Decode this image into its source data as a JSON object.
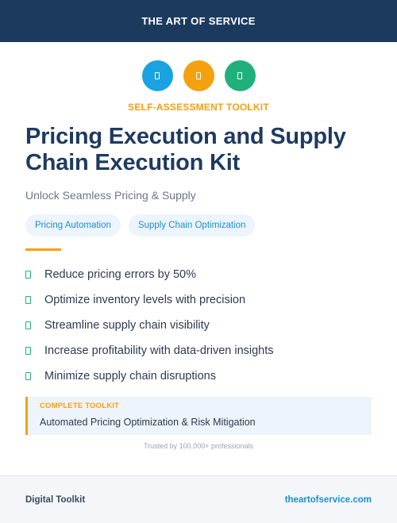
{
  "header": {
    "brand": "THE ART OF SERVICE"
  },
  "icons": [
    {
      "name": "blue-icon",
      "color": "#1aa3e0"
    },
    {
      "name": "orange-icon",
      "color": "#f5a00f"
    },
    {
      "name": "green-icon",
      "color": "#20b07c"
    }
  ],
  "eyebrow": "SELF-ASSESSMENT TOOLKIT",
  "title_line1": "Pricing Execution and Supply",
  "title_line2": "Chain Execution Kit",
  "subtitle": "Unlock Seamless Pricing & Supply",
  "tags": [
    "Pricing Automation",
    "Supply Chain Optimization"
  ],
  "features": [
    "Reduce pricing errors by 50%",
    "Optimize inventory levels with precision",
    "Streamline supply chain visibility",
    "Increase profitability with data-driven insights",
    "Minimize supply chain disruptions"
  ],
  "callout": {
    "label": "COMPLETE TOOLKIT",
    "text": "Automated Pricing Optimization & Risk Mitigation"
  },
  "trusted": "Trusted by 100,000+ professionals",
  "footer": {
    "left": "Digital Toolkit",
    "right": "theartofservice.com"
  },
  "colors": {
    "navy": "#1c3a5e",
    "accent": "#f5a00f",
    "link": "#1a8fd1",
    "check": "#22b07a"
  }
}
